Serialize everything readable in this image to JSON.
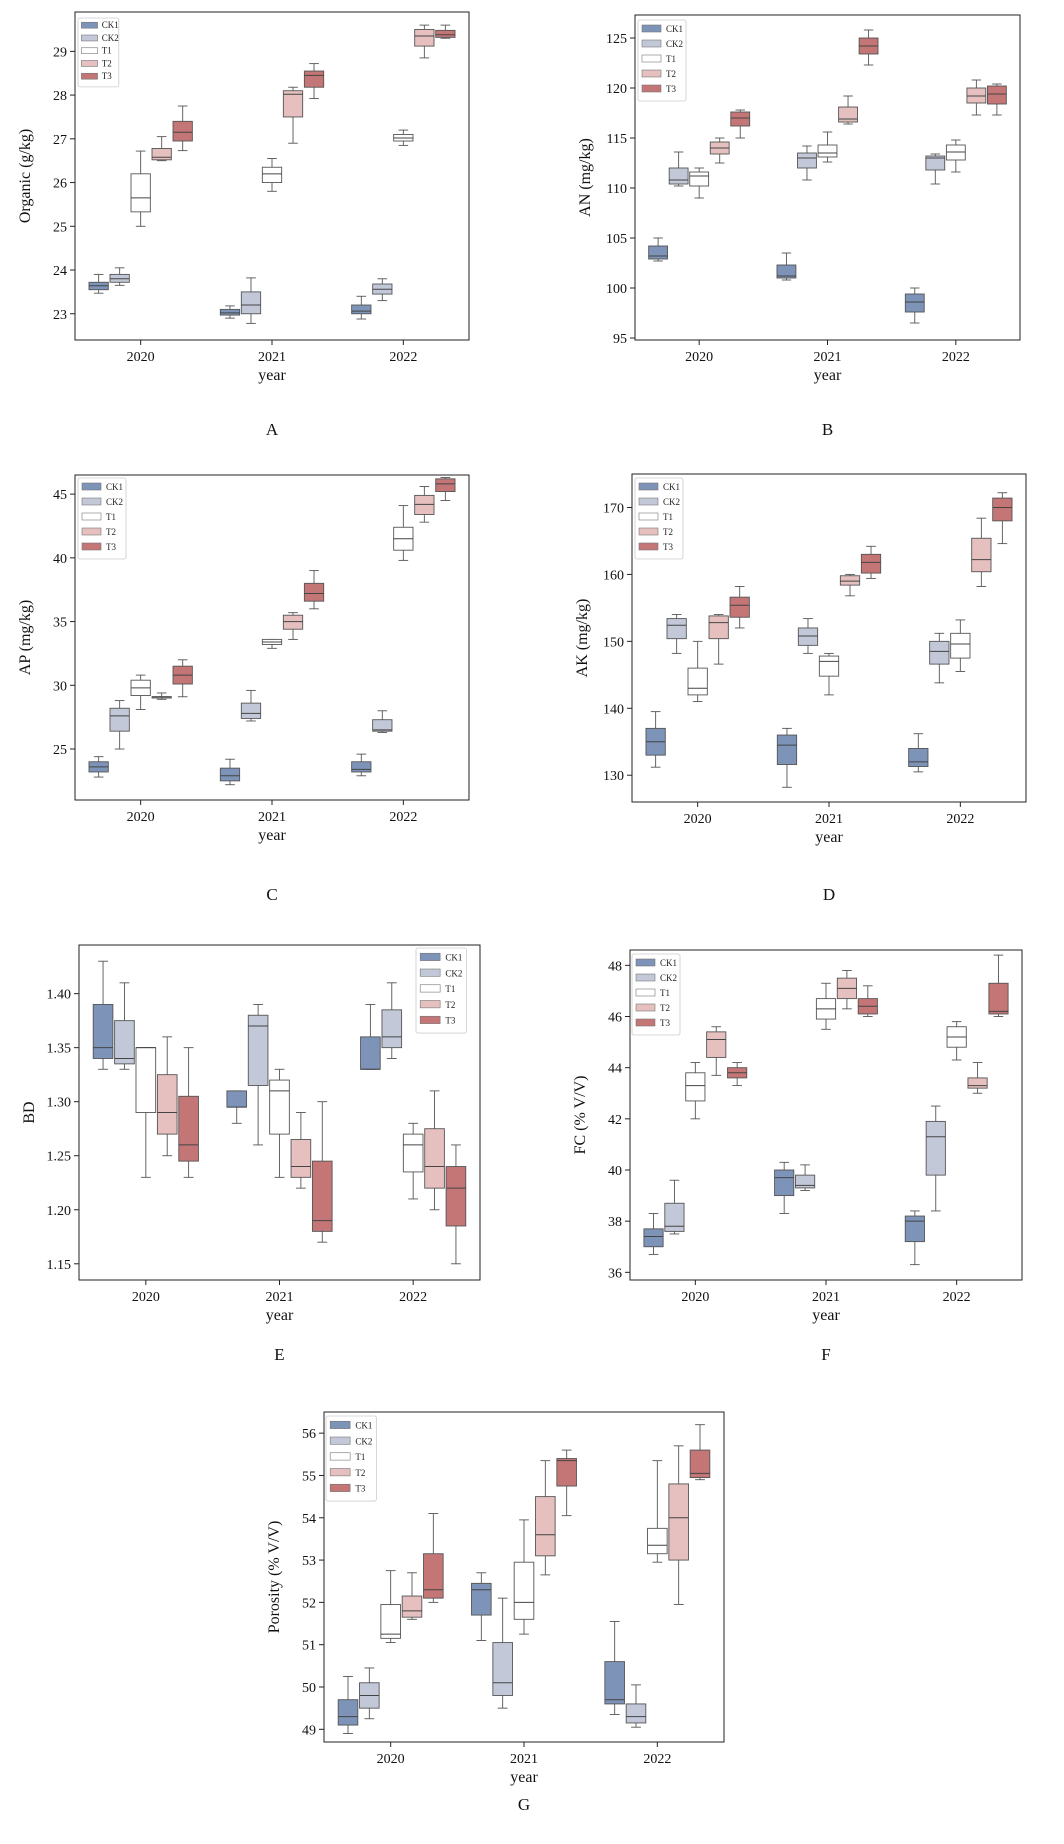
{
  "colors": {
    "CK1": "#7d93b8",
    "CK2": "#c2c8d8",
    "T1": "#ffffff",
    "T2": "#e6bfbf",
    "T3": "#c47676"
  },
  "chart_data": [
    {
      "type": "boxplot",
      "panel": "A",
      "ylabel": "Organic (g/kg)",
      "xlabel": "year",
      "categories": [
        "2020",
        "2021",
        "2022"
      ],
      "ylim": [
        22.4,
        29.9
      ],
      "yticks": [
        23,
        24,
        25,
        26,
        27,
        28,
        29
      ],
      "legend": "top-left",
      "series": [
        {
          "name": "CK1",
          "boxes": [
            [
              23.47,
              23.55,
              23.64,
              23.72,
              23.9
            ],
            [
              22.9,
              22.97,
              23.02,
              23.1,
              23.18
            ],
            [
              22.88,
              23.0,
              23.06,
              23.2,
              23.4
            ]
          ]
        },
        {
          "name": "CK2",
          "boxes": [
            [
              23.65,
              23.72,
              23.8,
              23.9,
              24.05
            ],
            [
              22.78,
              23.0,
              23.2,
              23.5,
              23.82
            ],
            [
              23.3,
              23.45,
              23.56,
              23.68,
              23.8
            ]
          ]
        },
        {
          "name": "T1",
          "boxes": [
            [
              25.0,
              25.33,
              25.65,
              26.2,
              26.72
            ],
            [
              25.8,
              26.0,
              26.2,
              26.35,
              26.55
            ],
            [
              26.85,
              26.95,
              27.02,
              27.1,
              27.2
            ]
          ]
        },
        {
          "name": "T2",
          "boxes": [
            [
              26.5,
              26.52,
              26.58,
              26.78,
              27.05
            ],
            [
              26.9,
              27.5,
              28.02,
              28.1,
              28.18
            ],
            [
              28.85,
              29.12,
              29.35,
              29.5,
              29.6
            ]
          ]
        },
        {
          "name": "T3",
          "boxes": [
            [
              26.73,
              26.95,
              27.15,
              27.4,
              27.75
            ],
            [
              27.92,
              28.18,
              28.45,
              28.55,
              28.72
            ],
            [
              29.3,
              29.32,
              29.38,
              29.48,
              29.6
            ]
          ]
        }
      ]
    },
    {
      "type": "boxplot",
      "panel": "B",
      "ylabel": "AN (mg/kg)",
      "xlabel": "year",
      "categories": [
        "2020",
        "2021",
        "2022"
      ],
      "ylim": [
        94.8,
        127.3
      ],
      "yticks": [
        95,
        100,
        105,
        110,
        115,
        120,
        125
      ],
      "legend": "top-left",
      "series": [
        {
          "name": "CK1",
          "boxes": [
            [
              102.7,
              102.9,
              103.2,
              104.2,
              105.0
            ],
            [
              100.8,
              101.0,
              101.2,
              102.3,
              103.5
            ],
            [
              96.5,
              97.6,
              98.6,
              99.4,
              100.0
            ]
          ]
        },
        {
          "name": "CK2",
          "boxes": [
            [
              110.2,
              110.4,
              110.8,
              112.0,
              113.6
            ],
            [
              110.8,
              112.0,
              113.0,
              113.5,
              114.2
            ],
            [
              110.4,
              111.8,
              113.0,
              113.2,
              113.4
            ]
          ]
        },
        {
          "name": "T1",
          "boxes": [
            [
              109.0,
              110.2,
              111.2,
              111.6,
              112.0
            ],
            [
              112.6,
              113.1,
              113.5,
              114.3,
              115.6
            ],
            [
              111.6,
              112.8,
              113.6,
              114.3,
              114.8
            ]
          ]
        },
        {
          "name": "T2",
          "boxes": [
            [
              112.5,
              113.4,
              114.0,
              114.6,
              115.0
            ],
            [
              116.4,
              116.6,
              116.9,
              118.1,
              119.2
            ],
            [
              117.3,
              118.5,
              119.2,
              120.0,
              120.8
            ]
          ]
        },
        {
          "name": "T3",
          "boxes": [
            [
              115.0,
              116.2,
              117.0,
              117.6,
              117.8
            ],
            [
              122.3,
              123.4,
              124.2,
              125.0,
              125.8
            ],
            [
              117.3,
              118.4,
              119.4,
              120.2,
              120.4
            ]
          ]
        }
      ]
    },
    {
      "type": "boxplot",
      "panel": "C",
      "ylabel": "AP (mg/kg)",
      "xlabel": "year",
      "categories": [
        "2020",
        "2021",
        "2022"
      ],
      "ylim": [
        21.0,
        46.5
      ],
      "yticks": [
        25,
        30,
        35,
        40,
        45
      ],
      "legend": "top-left",
      "series": [
        {
          "name": "CK1",
          "boxes": [
            [
              22.8,
              23.2,
              23.6,
              24.0,
              24.4
            ],
            [
              22.2,
              22.5,
              22.9,
              23.5,
              24.2
            ],
            [
              22.9,
              23.2,
              23.4,
              24.0,
              24.6
            ]
          ]
        },
        {
          "name": "CK2",
          "boxes": [
            [
              25.0,
              26.4,
              27.6,
              28.2,
              28.8
            ],
            [
              27.2,
              27.4,
              27.8,
              28.6,
              29.6
            ],
            [
              26.3,
              26.4,
              26.5,
              27.3,
              28.0
            ]
          ]
        },
        {
          "name": "T1",
          "boxes": [
            [
              28.1,
              29.2,
              29.8,
              30.4,
              30.8
            ],
            [
              32.9,
              33.2,
              33.4,
              33.6,
              33.6
            ],
            [
              39.8,
              40.6,
              41.5,
              42.4,
              44.1
            ]
          ]
        },
        {
          "name": "T2",
          "boxes": [
            [
              28.9,
              29.0,
              29.1,
              29.1,
              29.4
            ],
            [
              33.6,
              34.4,
              35.0,
              35.5,
              35.7
            ],
            [
              42.8,
              43.4,
              44.2,
              44.9,
              45.6
            ]
          ]
        },
        {
          "name": "T3",
          "boxes": [
            [
              29.1,
              30.1,
              30.8,
              31.5,
              32.0
            ],
            [
              36.0,
              36.6,
              37.2,
              38.0,
              39.0
            ],
            [
              44.5,
              45.2,
              45.8,
              46.2,
              46.3
            ]
          ]
        }
      ]
    },
    {
      "type": "boxplot",
      "panel": "D",
      "ylabel": "AK (mg/kg)",
      "xlabel": "year",
      "categories": [
        "2020",
        "2021",
        "2022"
      ],
      "ylim": [
        126.0,
        175.0
      ],
      "yticks": [
        130,
        140,
        150,
        160,
        170
      ],
      "legend": "top-left",
      "series": [
        {
          "name": "CK1",
          "boxes": [
            [
              131.2,
              133.0,
              135.0,
              137.0,
              139.5
            ],
            [
              128.2,
              131.6,
              134.5,
              136.0,
              137.0
            ],
            [
              130.5,
              131.3,
              132.0,
              134.0,
              136.2
            ]
          ]
        },
        {
          "name": "CK2",
          "boxes": [
            [
              148.2,
              150.4,
              152.4,
              153.4,
              154.0
            ],
            [
              148.2,
              149.4,
              150.8,
              152.0,
              153.4
            ],
            [
              143.8,
              146.6,
              148.5,
              150.0,
              151.2
            ]
          ]
        },
        {
          "name": "T1",
          "boxes": [
            [
              141.0,
              142.0,
              143.0,
              146.0,
              150.0
            ],
            [
              142.0,
              144.8,
              147.0,
              147.8,
              148.2
            ],
            [
              145.5,
              147.5,
              149.6,
              151.2,
              153.2
            ]
          ]
        },
        {
          "name": "T2",
          "boxes": [
            [
              146.6,
              150.4,
              152.8,
              153.8,
              154.0
            ],
            [
              156.8,
              158.4,
              159.0,
              159.8,
              160.0
            ],
            [
              158.2,
              160.4,
              162.2,
              165.4,
              168.4
            ]
          ]
        },
        {
          "name": "T3",
          "boxes": [
            [
              152.0,
              153.6,
              155.4,
              156.6,
              158.2
            ],
            [
              159.4,
              160.2,
              161.8,
              163.0,
              164.2
            ],
            [
              164.6,
              168.0,
              170.0,
              171.4,
              172.2
            ]
          ]
        }
      ]
    },
    {
      "type": "boxplot",
      "panel": "E",
      "ylabel": "BD",
      "xlabel": "year",
      "categories": [
        "2020",
        "2021",
        "2022"
      ],
      "ylim": [
        1.135,
        1.445
      ],
      "yticks": [
        1.15,
        1.2,
        1.25,
        1.3,
        1.35,
        1.4
      ],
      "legend": "top-right",
      "series": [
        {
          "name": "CK1",
          "boxes": [
            [
              1.33,
              1.34,
              1.35,
              1.39,
              1.43
            ],
            [
              1.28,
              1.295,
              1.295,
              1.31,
              1.31
            ],
            [
              1.33,
              1.33,
              1.33,
              1.36,
              1.39
            ]
          ]
        },
        {
          "name": "CK2",
          "boxes": [
            [
              1.33,
              1.335,
              1.34,
              1.375,
              1.41
            ],
            [
              1.26,
              1.315,
              1.37,
              1.38,
              1.39
            ],
            [
              1.34,
              1.35,
              1.36,
              1.385,
              1.41
            ]
          ]
        },
        {
          "name": "T1",
          "boxes": [
            [
              1.23,
              1.29,
              1.35,
              1.35,
              1.35
            ],
            [
              1.23,
              1.27,
              1.31,
              1.32,
              1.33
            ],
            [
              1.21,
              1.235,
              1.26,
              1.27,
              1.28
            ]
          ]
        },
        {
          "name": "T2",
          "boxes": [
            [
              1.25,
              1.27,
              1.29,
              1.325,
              1.36
            ],
            [
              1.22,
              1.23,
              1.24,
              1.265,
              1.29
            ],
            [
              1.2,
              1.22,
              1.24,
              1.275,
              1.31
            ]
          ]
        },
        {
          "name": "T3",
          "boxes": [
            [
              1.23,
              1.245,
              1.26,
              1.305,
              1.35
            ],
            [
              1.17,
              1.18,
              1.19,
              1.245,
              1.3
            ],
            [
              1.15,
              1.185,
              1.22,
              1.24,
              1.26
            ]
          ]
        }
      ]
    },
    {
      "type": "boxplot",
      "panel": "F",
      "ylabel": "FC (% V/V)",
      "xlabel": "year",
      "categories": [
        "2020",
        "2021",
        "2022"
      ],
      "ylim": [
        35.7,
        48.6
      ],
      "yticks": [
        36,
        38,
        40,
        42,
        44,
        46,
        48
      ],
      "legend": "top-left",
      "series": [
        {
          "name": "CK1",
          "boxes": [
            [
              36.7,
              37.0,
              37.4,
              37.7,
              38.3
            ],
            [
              38.3,
              39.0,
              39.7,
              40.0,
              40.3
            ],
            [
              36.3,
              37.2,
              38.0,
              38.2,
              38.4
            ]
          ]
        },
        {
          "name": "CK2",
          "boxes": [
            [
              37.5,
              37.6,
              37.8,
              38.7,
              39.6
            ],
            [
              39.2,
              39.3,
              39.4,
              39.8,
              40.2
            ],
            [
              38.4,
              39.8,
              41.3,
              41.9,
              42.5
            ]
          ]
        },
        {
          "name": "T1",
          "boxes": [
            [
              42.0,
              42.7,
              43.3,
              43.8,
              44.2
            ],
            [
              45.5,
              45.9,
              46.3,
              46.7,
              47.3
            ],
            [
              44.3,
              44.8,
              45.2,
              45.6,
              45.8
            ]
          ]
        },
        {
          "name": "T2",
          "boxes": [
            [
              43.7,
              44.4,
              45.1,
              45.4,
              45.6
            ],
            [
              46.3,
              46.7,
              47.1,
              47.5,
              47.8
            ],
            [
              43.0,
              43.2,
              43.3,
              43.6,
              44.2
            ]
          ]
        },
        {
          "name": "T3",
          "boxes": [
            [
              43.3,
              43.6,
              43.8,
              44.0,
              44.2
            ],
            [
              46.0,
              46.1,
              46.4,
              46.7,
              47.2
            ],
            [
              46.0,
              46.1,
              46.2,
              47.3,
              48.4
            ]
          ]
        }
      ]
    },
    {
      "type": "boxplot",
      "panel": "G",
      "ylabel": "Porosity (% V/V)",
      "xlabel": "year",
      "categories": [
        "2020",
        "2021",
        "2022"
      ],
      "ylim": [
        48.7,
        56.5
      ],
      "yticks": [
        49,
        50,
        51,
        52,
        53,
        54,
        55,
        56
      ],
      "legend": "top-left",
      "series": [
        {
          "name": "CK1",
          "boxes": [
            [
              48.9,
              49.1,
              49.3,
              49.7,
              50.25
            ],
            [
              51.1,
              51.7,
              52.3,
              52.45,
              52.7
            ],
            [
              49.35,
              49.6,
              49.7,
              50.6,
              51.55
            ]
          ]
        },
        {
          "name": "CK2",
          "boxes": [
            [
              49.25,
              49.5,
              49.8,
              50.1,
              50.45
            ],
            [
              49.5,
              49.8,
              50.1,
              51.05,
              52.1
            ],
            [
              49.05,
              49.15,
              49.3,
              49.6,
              50.05
            ]
          ]
        },
        {
          "name": "T1",
          "boxes": [
            [
              51.05,
              51.15,
              51.25,
              51.95,
              52.75
            ],
            [
              51.25,
              51.6,
              52.0,
              52.95,
              53.95
            ],
            [
              52.95,
              53.15,
              53.35,
              53.75,
              55.35
            ]
          ]
        },
        {
          "name": "T2",
          "boxes": [
            [
              51.6,
              51.65,
              51.8,
              52.15,
              52.7
            ],
            [
              52.65,
              53.1,
              53.6,
              54.5,
              55.35
            ],
            [
              51.95,
              53.0,
              54.0,
              54.8,
              55.7
            ]
          ]
        },
        {
          "name": "T3",
          "boxes": [
            [
              52.0,
              52.1,
              52.3,
              53.15,
              54.1
            ],
            [
              54.05,
              54.75,
              55.35,
              55.4,
              55.6
            ],
            [
              54.9,
              54.95,
              55.05,
              55.6,
              56.2
            ]
          ]
        }
      ]
    }
  ]
}
